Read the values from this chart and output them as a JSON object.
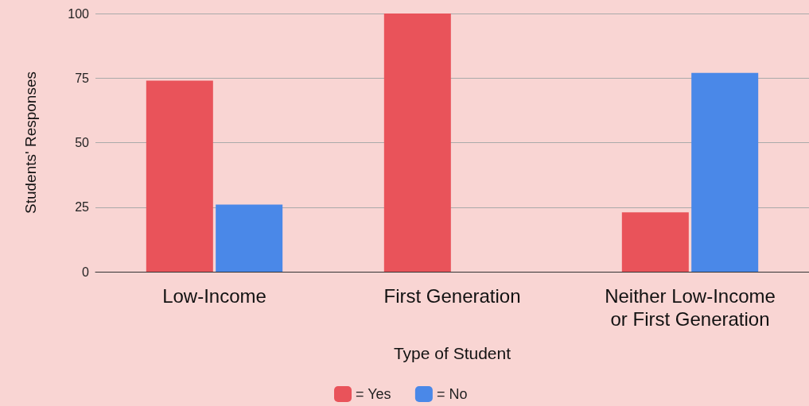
{
  "chart_data": {
    "type": "bar",
    "xlabel": "Type of Student",
    "ylabel": "Students' Responses",
    "categories": [
      "Low-Income",
      "First Generation",
      "Neither Low-Income\nor First Generation"
    ],
    "series": [
      {
        "name": "= Yes",
        "color": "#e9535a",
        "values": [
          74,
          100,
          23
        ]
      },
      {
        "name": "= No",
        "color": "#4a88e8",
        "values": [
          26,
          0,
          77
        ]
      }
    ],
    "ylim": [
      0,
      100
    ],
    "yticks": [
      0,
      25,
      50,
      75,
      100
    ],
    "grid": "y",
    "legend": "bottom"
  }
}
